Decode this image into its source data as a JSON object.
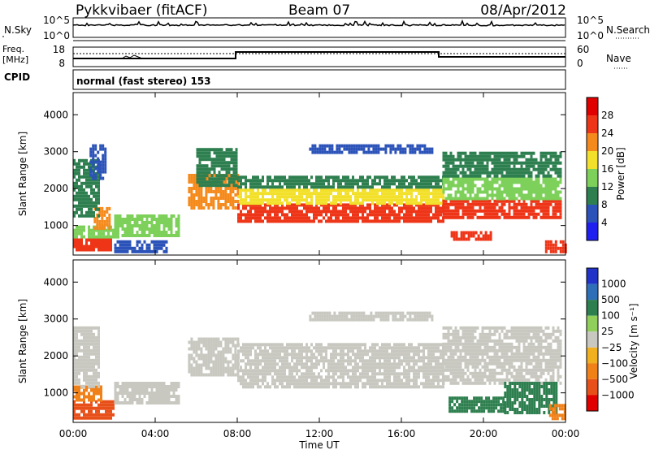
{
  "header": {
    "station": "Pykkvibaer (fitACF)",
    "beam": "Beam 07",
    "date": "08/Apr/2012"
  },
  "params": {
    "nsky_label": "N.Sky",
    "nsky_ticks": [
      "10^5",
      "10^0"
    ],
    "nsky_right_ticks": [
      "10^5",
      "10^0"
    ],
    "nsearch_label": "N.Search",
    "freq_label": "Freq.",
    "freq_unit": "[MHz]",
    "freq_ticks": [
      "18",
      "8"
    ],
    "nave_ticks": [
      "60",
      "0"
    ],
    "nave_label": "Nave",
    "cpid_label": "CPID",
    "cpid_text": "normal (fast stereo) 153"
  },
  "colors": {
    "power_scale": [
      "#1f1ff0",
      "#2a52b8",
      "#2e7f4f",
      "#7dd05a",
      "#f2e02a",
      "#f58a1c",
      "#ee3518",
      "#e00000"
    ],
    "velocity_scale": [
      "#2233c8",
      "#2f6fb8",
      "#2e7f4f",
      "#8fcf5a",
      "#c8c8c0",
      "#f0b020",
      "#f08018",
      "#e8501a",
      "#e00000"
    ],
    "ground_scatter": "#c8c8c0"
  },
  "chart_data": [
    {
      "type": "heatmap",
      "panel": "power",
      "ylabel": "Slant Range [km]",
      "yticks": [
        "1000",
        "2000",
        "3000",
        "4000"
      ],
      "ylim": [
        200,
        4600
      ],
      "xlim": [
        0,
        24
      ],
      "colorbar": {
        "label": "Power [dB]",
        "ticks": [
          "4",
          "8",
          "12",
          "16",
          "20",
          "24",
          "28"
        ],
        "range": [
          0,
          32
        ]
      },
      "bands": [
        {
          "t0": 0.0,
          "t1": 1.8,
          "r0": 300,
          "r1": 650,
          "power_db": 26
        },
        {
          "t0": 0.0,
          "t1": 2.2,
          "r0": 650,
          "r1": 1000,
          "power_db": 14
        },
        {
          "t0": 1.0,
          "t1": 1.8,
          "r0": 900,
          "r1": 1500,
          "power_db": 22
        },
        {
          "t0": 0.0,
          "t1": 1.3,
          "r0": 1300,
          "r1": 2800,
          "power_db": 10
        },
        {
          "t0": 0.8,
          "t1": 1.6,
          "r0": 2300,
          "r1": 3200,
          "power_db": 6
        },
        {
          "t0": 2.0,
          "t1": 5.2,
          "r0": 700,
          "r1": 1300,
          "power_db": 12
        },
        {
          "t0": 2.0,
          "t1": 4.6,
          "r0": 300,
          "r1": 600,
          "power_db": 6
        },
        {
          "t0": 5.6,
          "t1": 8.0,
          "r0": 1500,
          "r1": 2400,
          "power_db": 20
        },
        {
          "t0": 6.0,
          "t1": 8.0,
          "r0": 2100,
          "r1": 3100,
          "power_db": 8
        },
        {
          "t0": 8.0,
          "t1": 18.0,
          "r0": 1150,
          "r1": 1600,
          "power_db": 27
        },
        {
          "t0": 8.0,
          "t1": 18.0,
          "r0": 1600,
          "r1": 2000,
          "power_db": 19
        },
        {
          "t0": 8.0,
          "t1": 18.0,
          "r0": 2000,
          "r1": 2350,
          "power_db": 11
        },
        {
          "t0": 11.5,
          "t1": 17.5,
          "r0": 3000,
          "r1": 3200,
          "power_db": 5
        },
        {
          "t0": 18.0,
          "t1": 23.8,
          "r0": 1200,
          "r1": 1700,
          "power_db": 24
        },
        {
          "t0": 18.0,
          "t1": 23.8,
          "r0": 1700,
          "r1": 2300,
          "power_db": 14
        },
        {
          "t0": 18.4,
          "t1": 20.4,
          "r0": 600,
          "r1": 850,
          "power_db": 26
        },
        {
          "t0": 18.0,
          "t1": 23.8,
          "r0": 2300,
          "r1": 3000,
          "power_db": 8
        },
        {
          "t0": 23.0,
          "t1": 24.0,
          "r0": 300,
          "r1": 600,
          "power_db": 24
        }
      ]
    },
    {
      "type": "heatmap",
      "panel": "velocity",
      "ylabel": "Slant Range [km]",
      "yticks": [
        "1000",
        "2000",
        "3000",
        "4000"
      ],
      "ylim": [
        200,
        4600
      ],
      "xlim": [
        0,
        24
      ],
      "xlabel": "Time UT",
      "xticks": [
        "00:00",
        "04:00",
        "08:00",
        "12:00",
        "16:00",
        "20:00",
        "00:00"
      ],
      "colorbar": {
        "label": "Velocity [m s⁻¹]",
        "ticks": [
          "1000",
          "500",
          "100",
          "25",
          "−25",
          "−100",
          "−500",
          "−1000"
        ]
      },
      "bands": [
        {
          "t0": 0.0,
          "t1": 2.0,
          "r0": 300,
          "r1": 800,
          "velocity": -600
        },
        {
          "t0": 0.0,
          "t1": 1.4,
          "r0": 800,
          "r1": 1200,
          "velocity": -200
        },
        {
          "t0": 0.0,
          "t1": 1.2,
          "r0": 1200,
          "r1": 2800,
          "velocity": 0
        },
        {
          "t0": 2.0,
          "t1": 5.2,
          "r0": 700,
          "r1": 1300,
          "velocity": 0
        },
        {
          "t0": 5.6,
          "t1": 8.0,
          "r0": 1500,
          "r1": 2500,
          "velocity": 0
        },
        {
          "t0": 8.0,
          "t1": 18.0,
          "r0": 1150,
          "r1": 2350,
          "velocity": 0
        },
        {
          "t0": 11.5,
          "t1": 17.5,
          "r0": 3000,
          "r1": 3200,
          "velocity": 0
        },
        {
          "t0": 18.0,
          "t1": 23.8,
          "r0": 1300,
          "r1": 2800,
          "velocity": 0
        },
        {
          "t0": 18.3,
          "t1": 21.0,
          "r0": 500,
          "r1": 900,
          "velocity": 150
        },
        {
          "t0": 21.0,
          "t1": 23.5,
          "r0": 500,
          "r1": 1300,
          "velocity": 300
        },
        {
          "t0": 23.2,
          "t1": 24.0,
          "r0": 300,
          "r1": 700,
          "velocity": -300
        }
      ]
    }
  ]
}
